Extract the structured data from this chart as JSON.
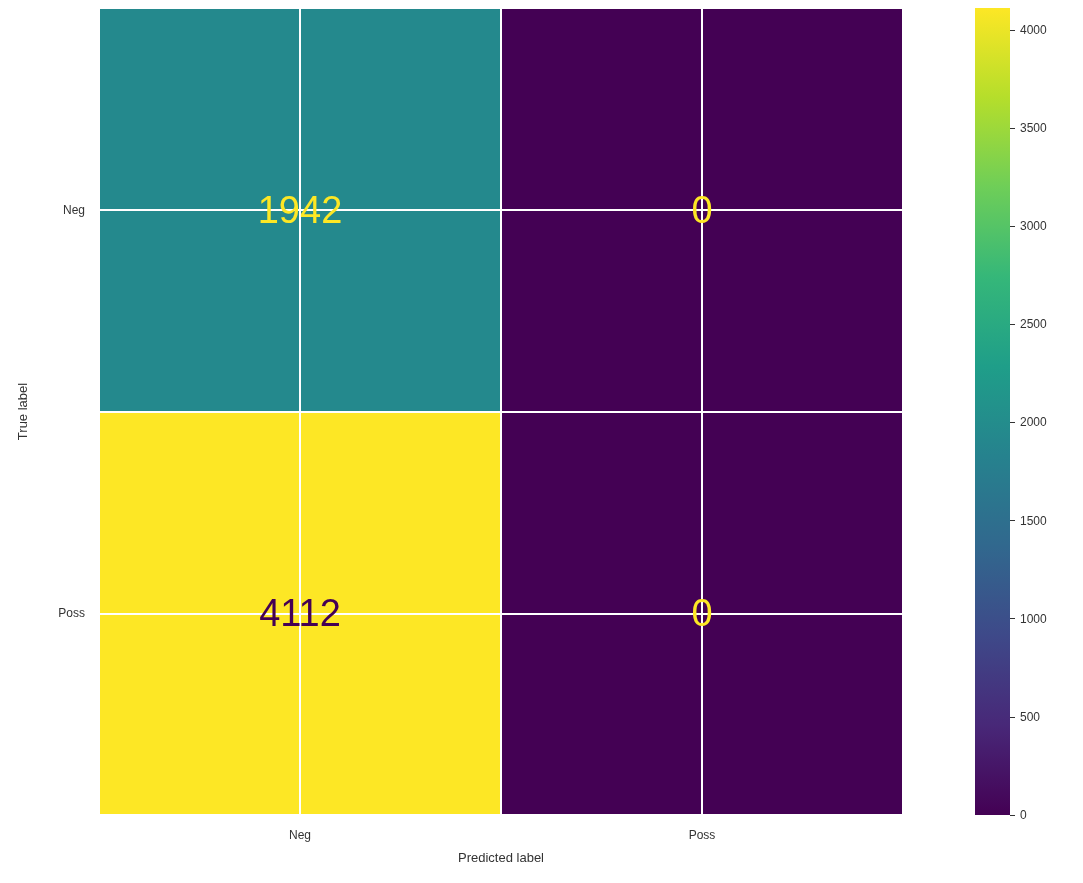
{
  "chart_data": {
    "type": "heatmap",
    "xlabel": "Predicted label",
    "ylabel": "True label",
    "categories": [
      "Neg",
      "Poss"
    ],
    "y_categories": [
      "Neg",
      "Poss"
    ],
    "cells": [
      [
        1942,
        0
      ],
      [
        4112,
        0
      ]
    ],
    "clim": [
      0,
      4112
    ],
    "cticks": [
      0,
      500,
      1000,
      1500,
      2000,
      2500,
      3000,
      3500,
      4000
    ],
    "data_labels": true,
    "grid": true
  }
}
